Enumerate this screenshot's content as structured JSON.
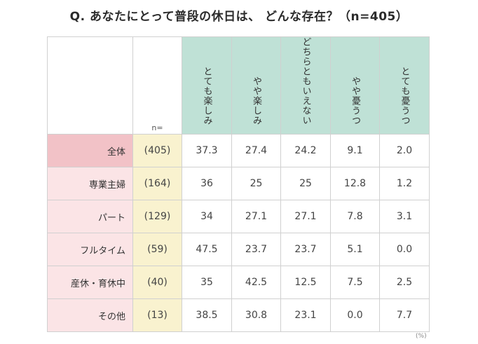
{
  "title": "Q. あなたにとって普段の休日は、 どんな存在？（n=405）",
  "chart_data": {
    "type": "table",
    "n_header": "n=",
    "columns": [
      "とても楽しみ",
      "やや楽しみ",
      "どちらともいえない",
      "やや憂うつ",
      "とても憂うつ"
    ],
    "rows": [
      {
        "label": "全体",
        "n": "(405)",
        "values": [
          "37.3",
          "27.4",
          "24.2",
          "9.1",
          "2.0"
        ]
      },
      {
        "label": "専業主婦",
        "n": "(164)",
        "values": [
          "36",
          "25",
          "25",
          "12.8",
          "1.2"
        ]
      },
      {
        "label": "パート",
        "n": "(129)",
        "values": [
          "34",
          "27.1",
          "27.1",
          "7.8",
          "3.1"
        ]
      },
      {
        "label": "フルタイム",
        "n": "(59)",
        "values": [
          "47.5",
          "23.7",
          "23.7",
          "5.1",
          "0.0"
        ]
      },
      {
        "label": "産休・育休中",
        "n": "(40)",
        "values": [
          "35",
          "42.5",
          "12.5",
          "7.5",
          "2.5"
        ]
      },
      {
        "label": "その他",
        "n": "(13)",
        "values": [
          "38.5",
          "30.8",
          "23.1",
          "0.0",
          "7.7"
        ]
      }
    ],
    "unit": "(%)"
  },
  "colors": {
    "header_bg": "#bfe1d6",
    "total_row_label_bg": "#f2c2c7",
    "row_label_bg": "#fbe4e6",
    "n_column_bg": "#f9f2cf"
  }
}
